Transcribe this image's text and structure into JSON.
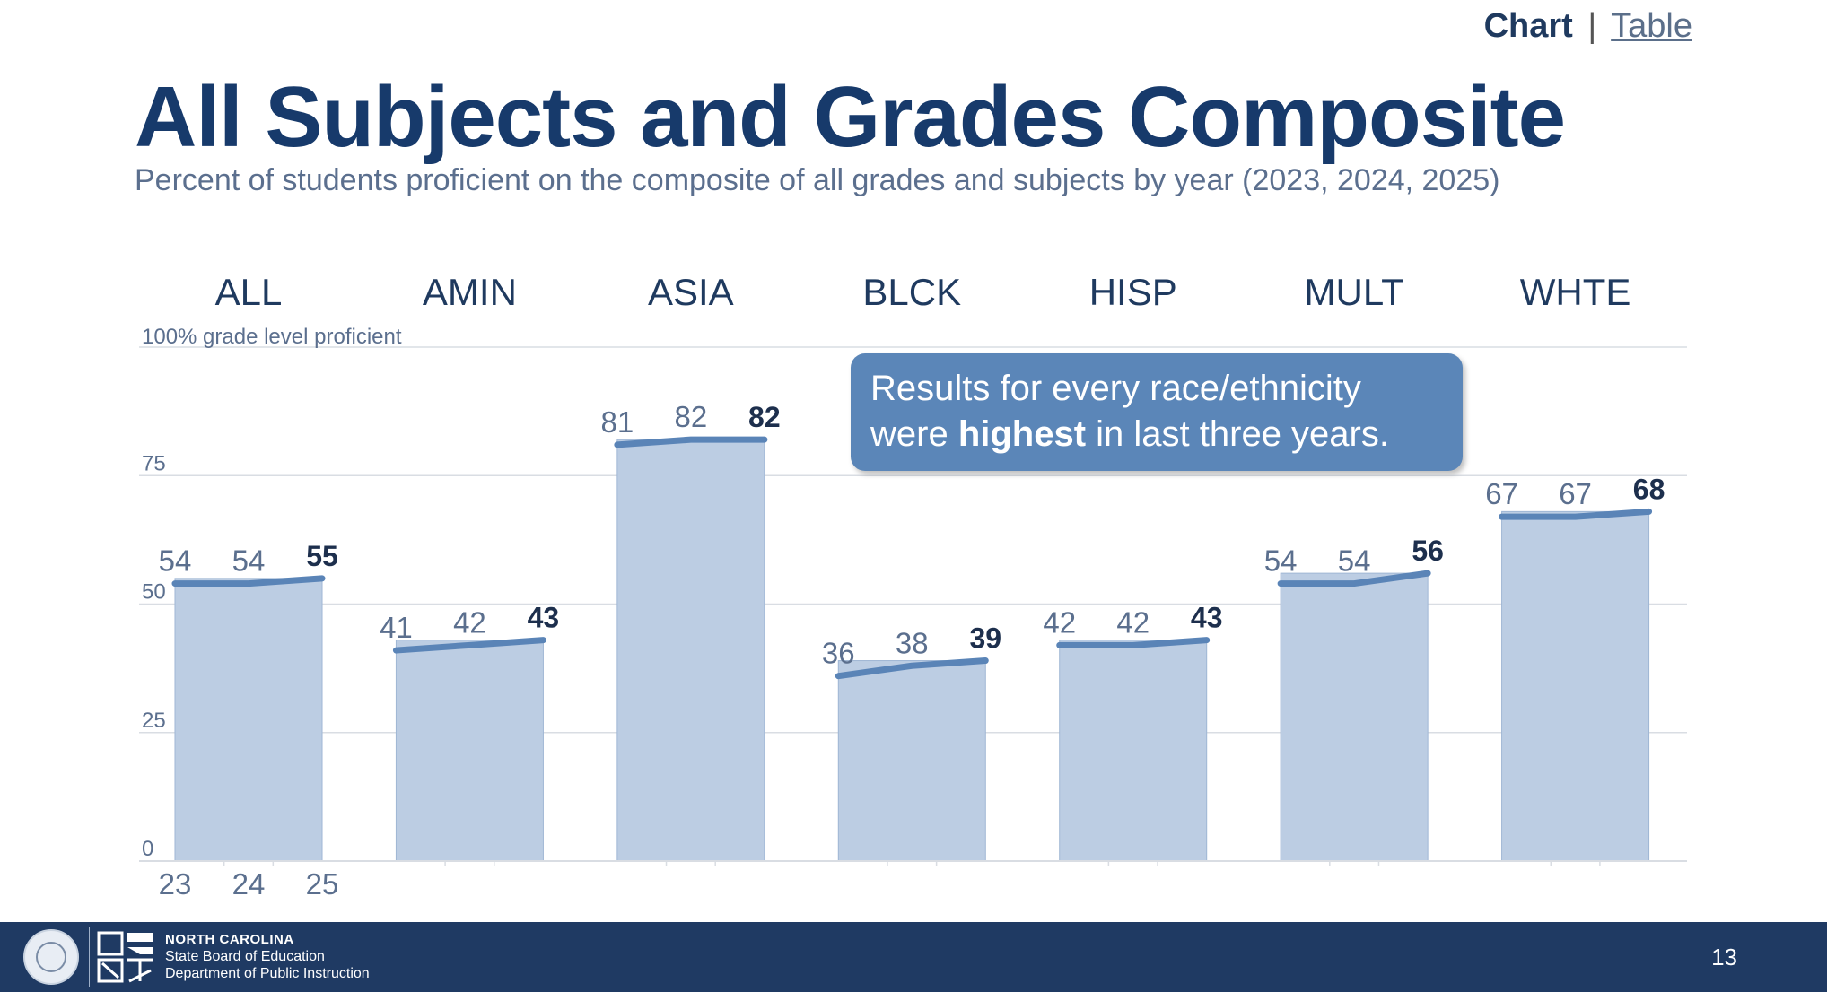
{
  "nav": {
    "active": "Chart",
    "separator": "|",
    "link": "Table"
  },
  "chart_data": {
    "type": "bar",
    "title": "All Subjects and Grades Composite",
    "subtitle": "Percent of students proficient on the composite of all grades and subjects by year (2023, 2024, 2025)",
    "categories": [
      "ALL",
      "AMIN",
      "ASIA",
      "BLCK",
      "HISP",
      "MULT",
      "WHTE"
    ],
    "x": [
      "23",
      "24",
      "25"
    ],
    "series": [
      {
        "values": [
          54,
          41,
          81,
          36,
          42,
          54,
          67
        ]
      },
      {
        "values": [
          54,
          42,
          82,
          38,
          42,
          54,
          67
        ]
      },
      {
        "values": [
          55,
          43,
          82,
          39,
          43,
          56,
          68
        ]
      }
    ],
    "ylim": [
      0,
      100
    ],
    "yticks": [
      0,
      25,
      50,
      75
    ],
    "top_gridline_label": "100% grade level proficient",
    "grid": true,
    "annotation": {
      "line1": "Results for every race/ethnicity",
      "line2_before": "were ",
      "line2_bold": "highest",
      "line2_after": " in last three years."
    },
    "colors": {
      "bar": "#bccde3",
      "bar_edge": "#9fb6d4",
      "trend_line": "#5a84b7",
      "label": "#5b6f8e",
      "label_latest": "#1d2f4d",
      "category": "#1f3a5f",
      "grid": "#d9dde3"
    }
  },
  "footer": {
    "org_line1": "NORTH CAROLINA",
    "org_line2": "State Board of Education",
    "org_line3": "Department of Public Instruction",
    "page_number": "13"
  }
}
